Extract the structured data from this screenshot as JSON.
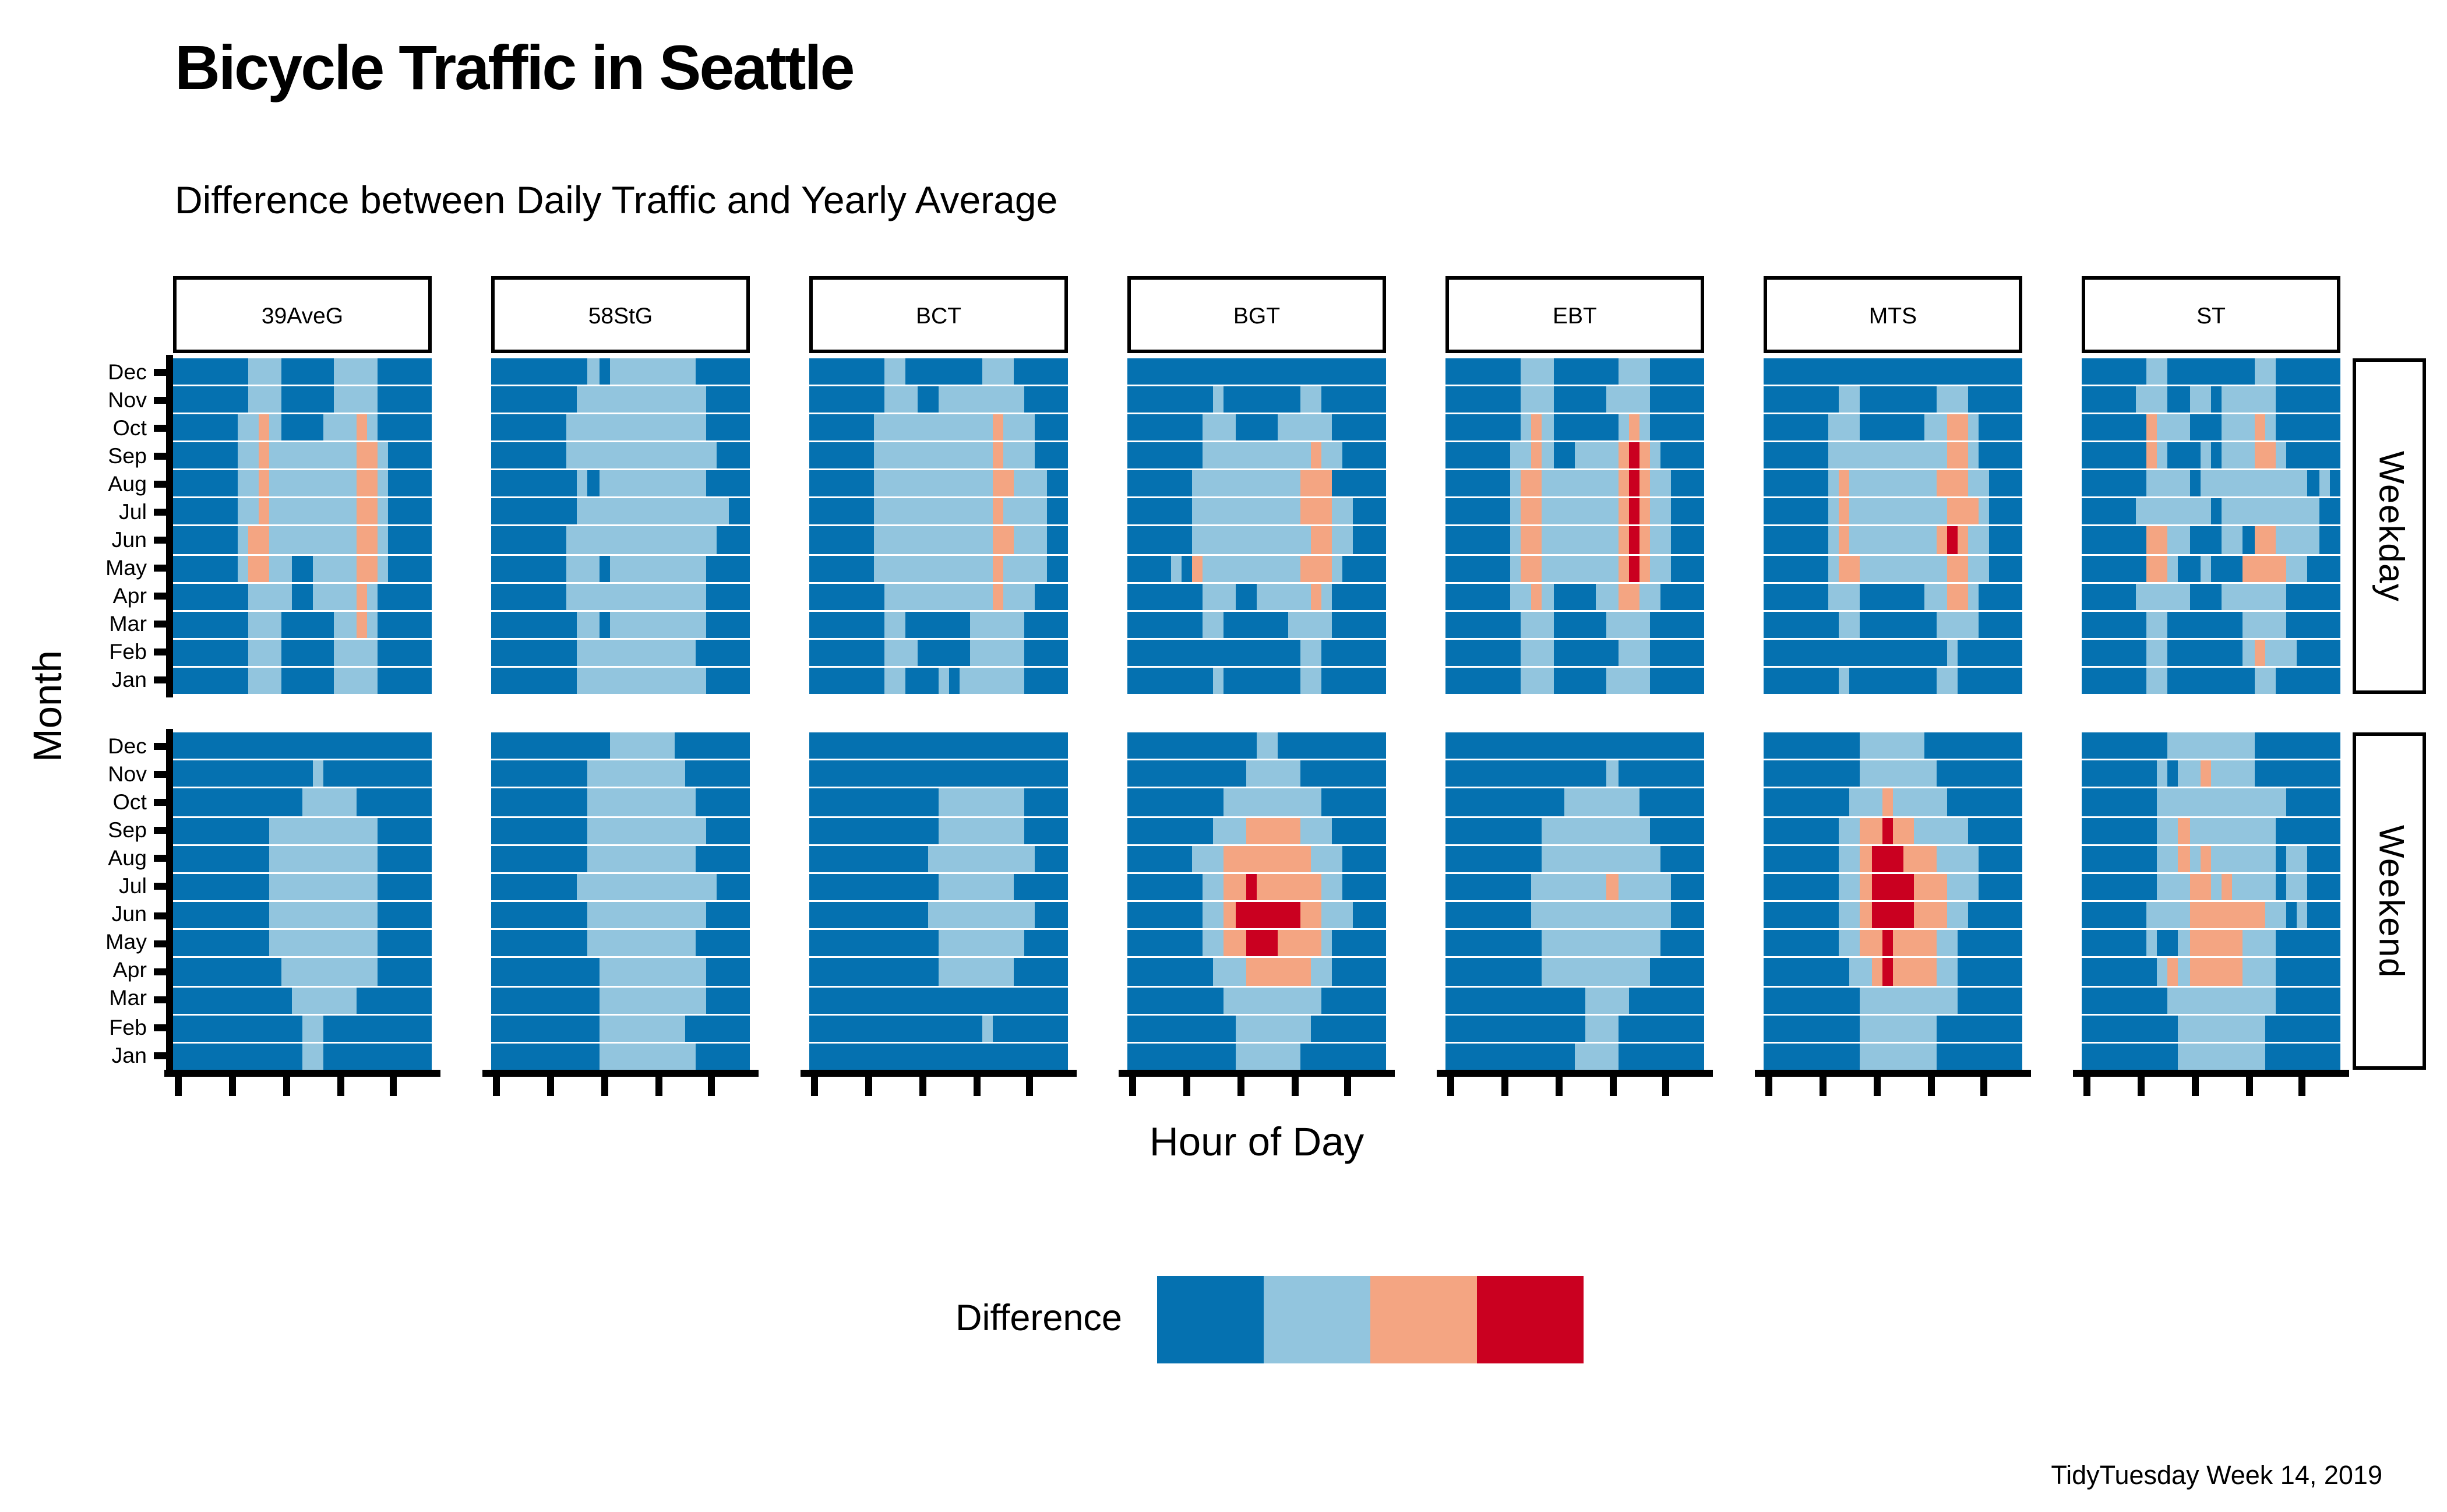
{
  "title": "Bicycle Traffic in Seattle",
  "subtitle": "Difference between Daily Traffic and Yearly Average",
  "caption": "TidyTuesday Week 14, 2019",
  "axes": {
    "x_label": "Hour of Day",
    "y_label": "Month"
  },
  "legend": {
    "label": "Difference"
  },
  "chart_data": {
    "type": "heatmap",
    "x_unit": "hour of day, 24 columns per panel",
    "x_tick_hours": [
      0,
      5,
      10,
      15,
      20
    ],
    "months_top_to_bottom": [
      "Dec",
      "Nov",
      "Oct",
      "Sep",
      "Aug",
      "Jul",
      "Jun",
      "May",
      "Apr",
      "Mar",
      "Feb",
      "Jan"
    ],
    "column_facets": [
      "39AveG",
      "58StG",
      "BCT",
      "BGT",
      "EBT",
      "MTS",
      "ST"
    ],
    "row_facets": [
      "Weekday",
      "Weekend"
    ],
    "colors": [
      "#0571b0",
      "#92c5de",
      "#f4a582",
      "#ca0020"
    ],
    "color_key": "0=dark blue (well below average), 1=light blue, 2=salmon, 3=dark red (far above average)",
    "grids": {
      "Weekday": {
        "39AveG": [
          "000000011100000111100000",
          "000000011100000111100000",
          "000000112100001112100000",
          "000000112111111112210000",
          "000000112111111112210000",
          "000000112111111112210000",
          "000000122111111112210000",
          "000000122110011112210000",
          "000000011110011112100000",
          "000000011100000112100000",
          "000000011100000111100000",
          "000000011100000111100000"
        ],
        "58StG": [
          "000000000101111111100000",
          "000000001111111111110000",
          "000000011111111111110000",
          "000000011111111111111000",
          "000000001011111111110000",
          "000000001111111111111100",
          "000000011111111111111000",
          "000000011101111111110000",
          "000000011111111111110000",
          "000000001101111111110000",
          "000000001111111111100000",
          "000000001111111111110000"
        ],
        "BCT": [
          "000000011000000011100000",
          "000000011100111111110000",
          "000000111111111112111000",
          "000000111111111112111000",
          "000000111111111112211100",
          "000000111111111112111100",
          "000000111111111112211100",
          "000000111111111112111100",
          "000000011111111112111000",
          "000000011000000111110000",
          "000000011100000111110000",
          "000000011000101111110000"
        ],
        "BGT": [
          "000000000000000000000000",
          "000000001000000011000000",
          "000000011100001111100000",
          "000000011111111112110000",
          "000000111111111122200000",
          "000000111111111122211000",
          "000000111111111112211000",
          "000010211111111122210000",
          "000000011100111112100000",
          "000000011000000111100000",
          "000000000000000011000000",
          "000000001000000011000000"
        ],
        "EBT": [
          "000000011100000011100000",
          "000000011100000111100000",
          "000000012100000012100000",
          "000000112100111123210000",
          "000000122111111123211000",
          "000000122111111123211000",
          "000000122111111123211000",
          "000000122111111123211000",
          "000000112100001122110000",
          "000000011100000111100000",
          "000000011100000011100000",
          "000000011100000111100000"
        ],
        "MTS": [
          "000000000000000000000000",
          "000000011000000011100000",
          "000000111000000112210000",
          "000000111111111112210000",
          "000000121111111122211000",
          "000000121111111112221000",
          "000000121111111123211000",
          "000000122111111112211000",
          "000000111000000112210000",
          "000000011000000011110000",
          "000000000000000001000000",
          "000000010000000011000000"
        ],
        "ST": [
          "000000110000000011000000",
          "000001110011011111000000",
          "000000211100011121000000",
          "000000210001011122100000",
          "000000111101111111111010",
          "000001111111011111111100",
          "000000221100011022111100",
          "000000221001000222211000",
          "000001111100011111100000",
          "000000110000000111100000",
          "000000110000000121110000",
          "000000110000000011000000"
        ]
      },
      "Weekend": {
        "39AveG": [
          "000000000000000000000000",
          "000000000000010000000000",
          "000000000000111110000000",
          "000000000111111111100000",
          "000000000111111111100000",
          "000000000111111111100000",
          "000000000111111111100000",
          "000000000111111111100000",
          "000000000011111111100000",
          "000000000001111110000000",
          "000000000000110000000000",
          "000000000000110000000000"
        ],
        "58StG": [
          "000000000001111110000000",
          "000000000111111111000000",
          "000000000111111111100000",
          "000000000111111111110000",
          "000000000111111111100000",
          "000000001111111111111000",
          "000000000111111111110000",
          "000000000111111111100000",
          "000000000011111111110000",
          "000000000011111111110000",
          "000000000011111111000000",
          "000000000011111111100000"
        ],
        "BCT": [
          "000000000000000000000000",
          "000000000000000000000000",
          "000000000000111111110000",
          "000000000000111111110000",
          "000000000001111111111000",
          "000000000000111111100000",
          "000000000001111111111000",
          "000000000000111111110000",
          "000000000000111111100000",
          "000000000000000000000000",
          "000000000000000010000000",
          "000000000000000000000000"
        ],
        "BGT": [
          "000000000000110000000000",
          "000000000001111100000000",
          "000000000111111111000000",
          "000000001112222211100000",
          "000000111222222221110000",
          "000000011223222222110000",
          "000000011233333322111000",
          "000000011223332222100000",
          "000000001112222221100000",
          "000000000111111111000000",
          "000000000011111110000000",
          "000000000011111100000000"
        ],
        "EBT": [
          "000000000000000000000000",
          "000000000000000100000000",
          "000000000001111111000000",
          "000000000111111111100000",
          "000000000111111111110000",
          "000000001111111211111000",
          "000000001111111111111000",
          "000000000111111111110000",
          "000000000111111111100000",
          "000000000000011110000000",
          "000000000000011100000000",
          "000000000000111100000000"
        ],
        "MTS": [
          "000000000111111000000000",
          "000000000111111100000000",
          "000000001112111110000000",
          "000000011223221111100000",
          "000000011233322211110000",
          "000000011233332221110000",
          "000000011233332221100000",
          "000000011223222211000000",
          "000000001123222211000000",
          "000000000111111111000000",
          "000000000111111100000000",
          "000000000111111100000000"
        ],
        "ST": [
          "000000001111111100000000",
          "000000010112111100000000",
          "000000011111111111100000",
          "000000011211111111000000",
          "000000011212111111011000",
          "000000011122121111011000",
          "000000111122222221101000",
          "000000100122222111000000",
          "000000012122222111000000",
          "000000001111111111000000",
          "000000000111111110000000",
          "000000000111111110000000"
        ]
      }
    }
  }
}
